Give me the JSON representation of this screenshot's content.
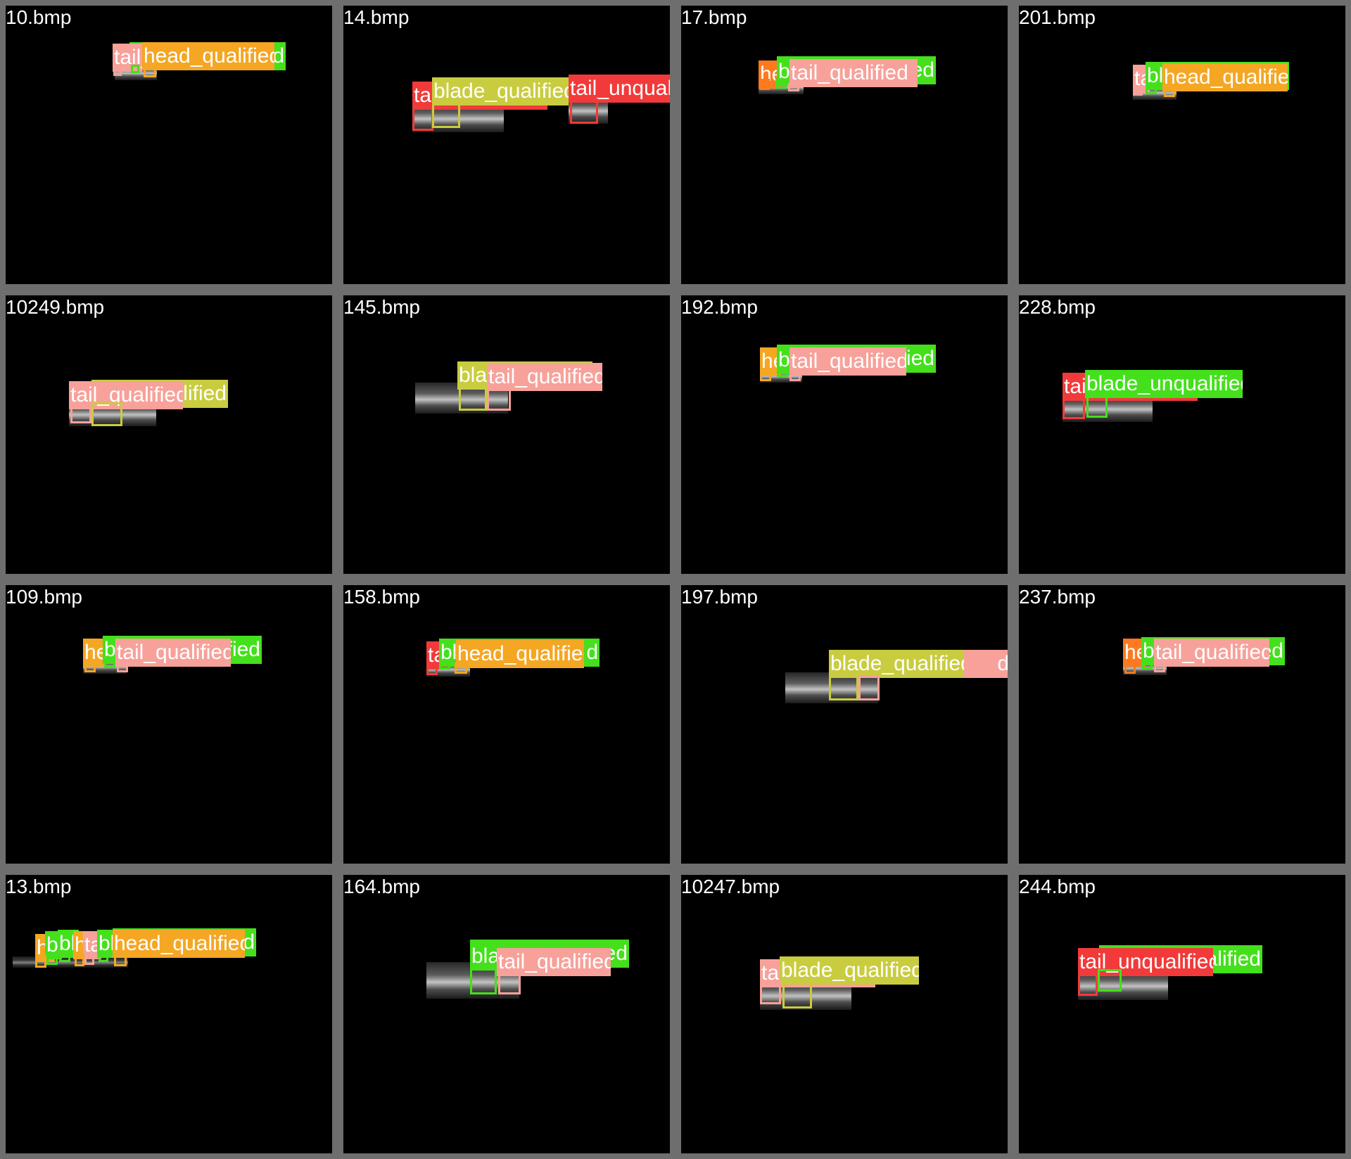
{
  "colors": {
    "head_qualified": "#f5a623",
    "head_unqualified": "#ff7a1f",
    "blade_qualified": "#c9cc3f",
    "blade_unqualified": "#44e01c",
    "tail_qualified": "#f7a19a",
    "tail_unqualified": "#f23a3a"
  },
  "tiles": [
    {
      "filename": "10.bmp"
    },
    {
      "filename": "14.bmp"
    },
    {
      "filename": "17.bmp"
    },
    {
      "filename": "201.bmp"
    },
    {
      "filename": "10249.bmp"
    },
    {
      "filename": "145.bmp"
    },
    {
      "filename": "192.bmp"
    },
    {
      "filename": "228.bmp"
    },
    {
      "filename": "109.bmp"
    },
    {
      "filename": "158.bmp"
    },
    {
      "filename": "197.bmp"
    },
    {
      "filename": "237.bmp"
    },
    {
      "filename": "13.bmp"
    },
    {
      "filename": "164.bmp"
    },
    {
      "filename": "10247.bmp"
    },
    {
      "filename": "244.bmp"
    }
  ],
  "labels": {
    "t0": [
      "tail_",
      "head_qualified",
      "d"
    ],
    "t1": [
      "tai",
      "blade_qualified",
      "tail_unqualified"
    ],
    "t2": [
      "he",
      "b",
      "tail_qualified",
      "fied"
    ],
    "t3": [
      "ta",
      "bla",
      "head_qualified",
      "d"
    ],
    "t4": [
      "tail_qualified",
      "lified"
    ],
    "t5": [
      "blad",
      "tail_qualified"
    ],
    "t6": [
      "he",
      "b",
      "tail_qualified",
      "fied"
    ],
    "t7": [
      "tai",
      "blade_unqualified"
    ],
    "t8": [
      "he",
      "b",
      "tail_qualified",
      "fied"
    ],
    "t9": [
      "ta",
      "bl",
      "head_qualified",
      "d"
    ],
    "t10": [
      "blade_qualified",
      "d"
    ],
    "t11": [
      "he",
      "b",
      "tail_qualified",
      "fied"
    ],
    "t12": [
      "h",
      "b",
      "bl",
      "h",
      "ta",
      "bl",
      "head_qualified",
      "d"
    ],
    "t13": [
      "bla",
      "tail_qualified",
      "ed"
    ],
    "t14": [
      "tai",
      "blade_qualified"
    ],
    "t15": [
      "tail_unqualified",
      "alified"
    ]
  }
}
